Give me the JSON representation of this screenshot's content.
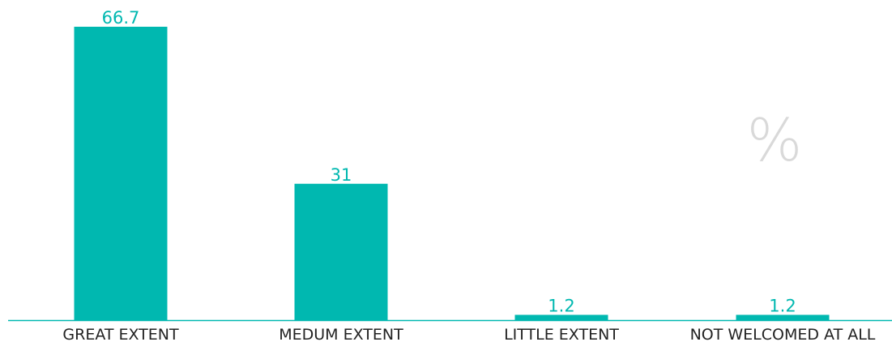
{
  "chart_data": {
    "type": "bar",
    "categories": [
      "GREAT EXTENT",
      "MEDUM EXTENT",
      "LITTLE EXTENT",
      "NOT WELCOMED AT ALL"
    ],
    "values": [
      66.7,
      31,
      1.2,
      1.2
    ],
    "value_labels": [
      "66.7",
      "31",
      "1.2",
      "1.2"
    ],
    "unit": "%",
    "title": "",
    "xlabel": "",
    "ylabel": "",
    "ylim": [
      0,
      66.7
    ],
    "grid": false,
    "legend": "none",
    "bar_color": "#00b8b0",
    "label_color": "#00b8b0",
    "axis_color": "#00b8b0"
  }
}
